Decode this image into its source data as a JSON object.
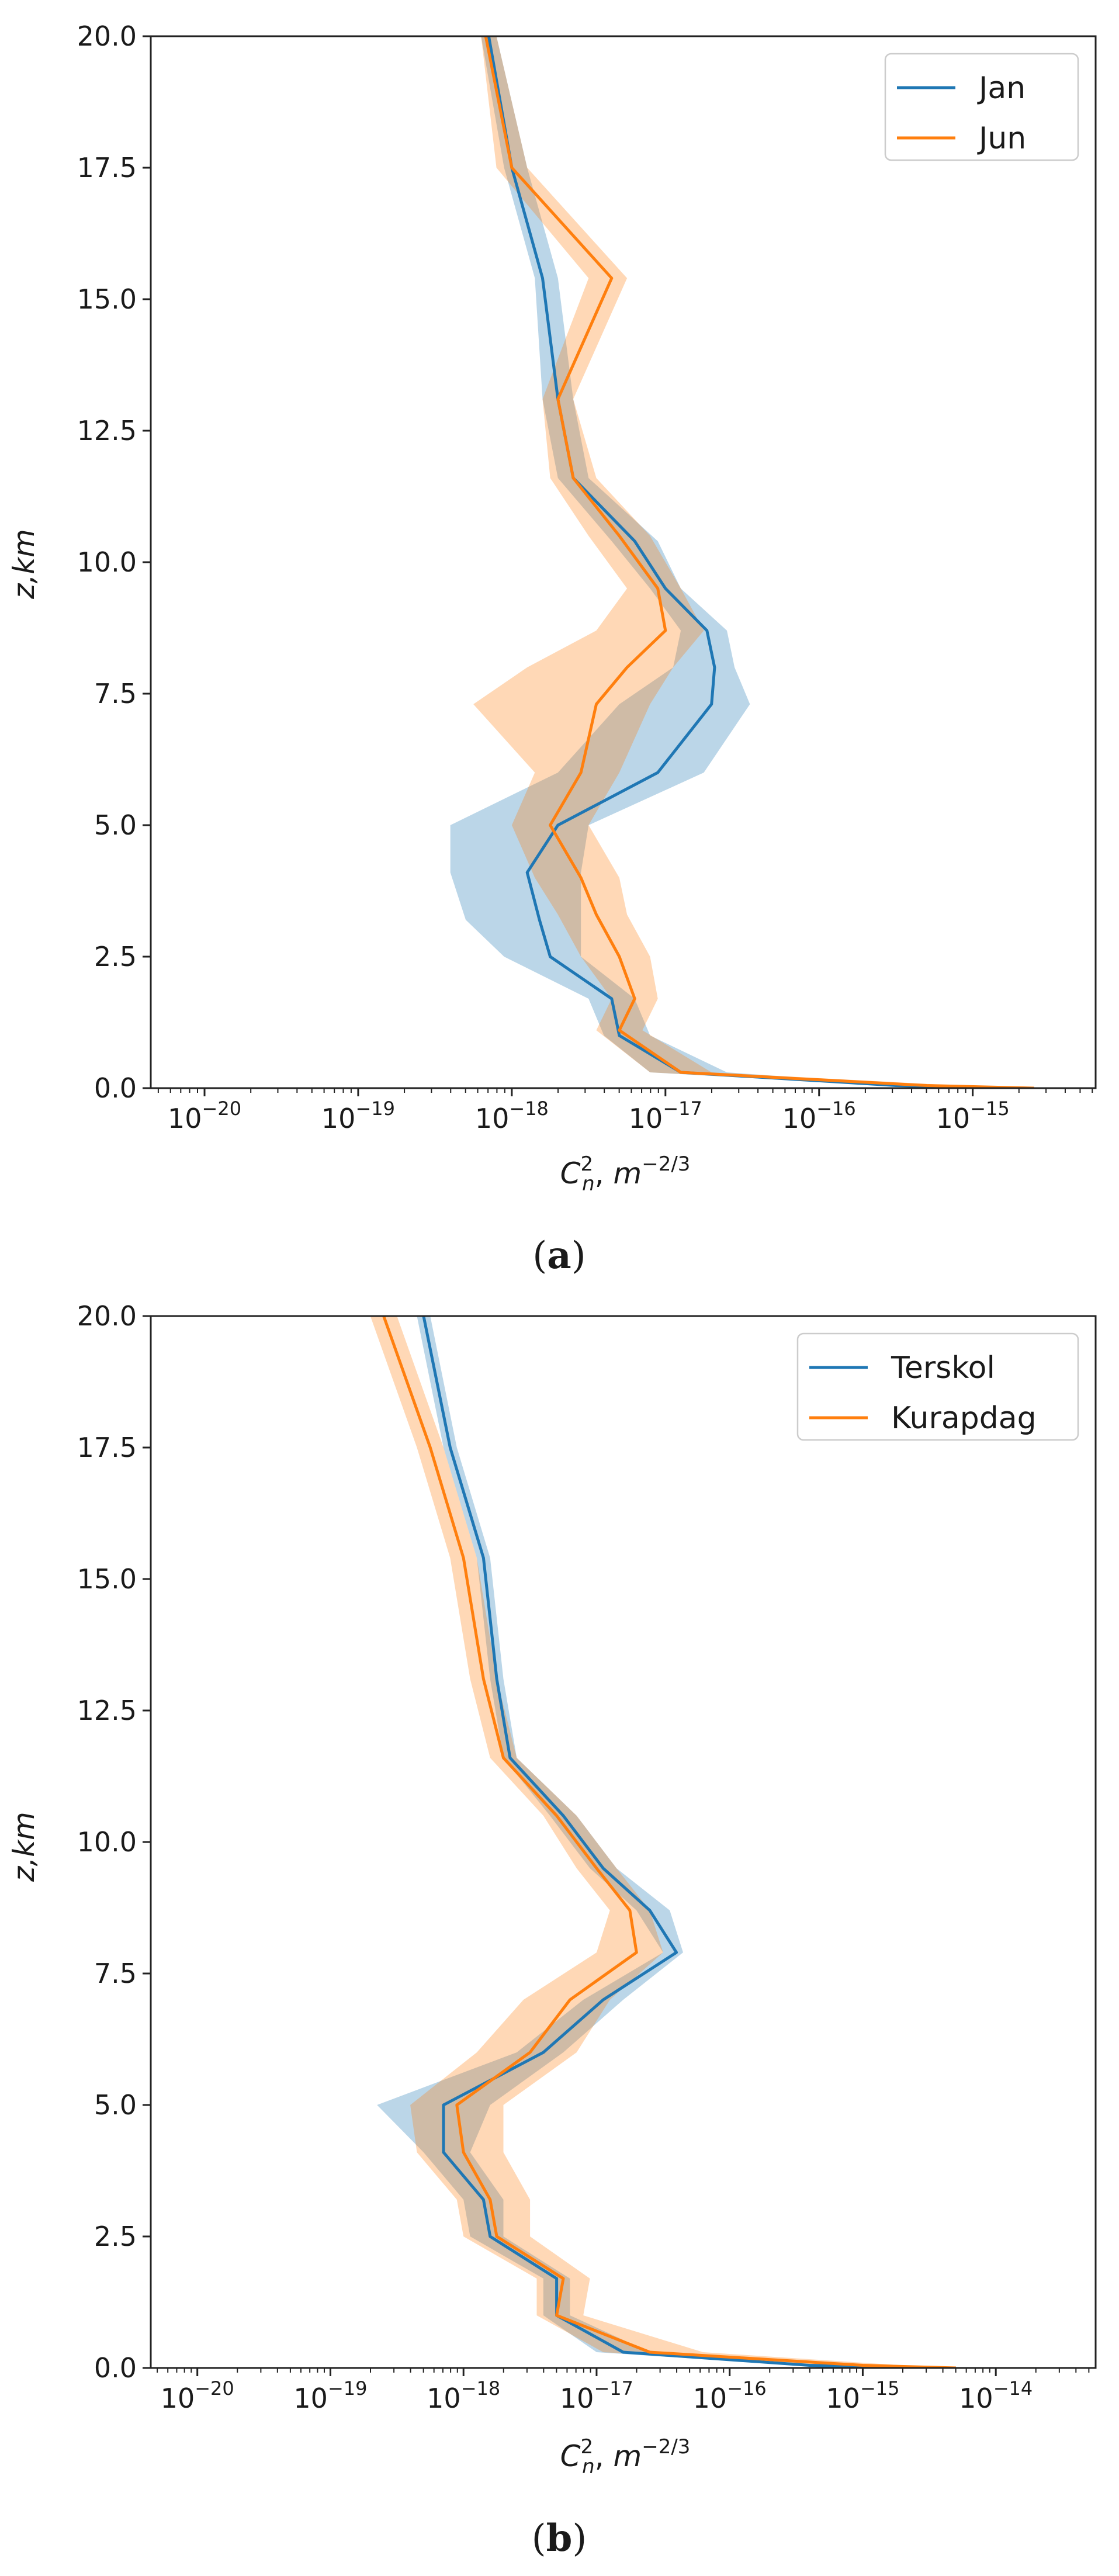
{
  "chart_data": [
    {
      "type": "line",
      "panel_label": "a",
      "xlabel": "C_n^2, m^-2/3",
      "ylabel": "z,km",
      "xscale": "log",
      "xlim_exp": [
        -20.35,
        -14.2
      ],
      "ylim": [
        0,
        20
      ],
      "y_ticks": [
        "0.0",
        "2.5",
        "5.0",
        "7.5",
        "10.0",
        "12.5",
        "15.0",
        "17.5",
        "20.0"
      ],
      "x_tick_exponents": [
        -20,
        -19,
        -18,
        -17,
        -16,
        -15
      ],
      "legend": {
        "position": "top-right",
        "entries": [
          "Jan",
          "Jun"
        ]
      },
      "series": [
        {
          "name": "Jan",
          "color": "#1f77b4",
          "z": [
            0.0,
            0.05,
            0.3,
            1.0,
            1.7,
            2.5,
            3.2,
            4.1,
            5.0,
            6.0,
            7.3,
            8.0,
            8.7,
            9.5,
            10.4,
            11.6,
            13.1,
            15.4,
            17.5,
            20.0
          ],
          "log_cn2": [
            -14.65,
            -15.5,
            -16.9,
            -17.3,
            -17.35,
            -17.75,
            -17.82,
            -17.9,
            -17.7,
            -17.05,
            -16.7,
            -16.68,
            -16.73,
            -17.0,
            -17.2,
            -17.6,
            -17.7,
            -17.8,
            -18.0,
            -18.15
          ],
          "band_lo": [
            -14.7,
            -15.6,
            -17.1,
            -17.4,
            -17.5,
            -18.05,
            -18.3,
            -18.4,
            -18.4,
            -17.7,
            -17.3,
            -16.95,
            -16.9,
            -17.1,
            -17.35,
            -17.7,
            -17.8,
            -17.85,
            -18.05,
            -18.2
          ],
          "band_hi": [
            -14.6,
            -15.4,
            -16.6,
            -17.1,
            -17.2,
            -17.55,
            -17.55,
            -17.55,
            -17.5,
            -16.75,
            -16.45,
            -16.55,
            -16.6,
            -16.9,
            -17.05,
            -17.5,
            -17.6,
            -17.7,
            -17.9,
            -18.1
          ]
        },
        {
          "name": "Jun",
          "color": "#ff7f0e",
          "z": [
            0.0,
            0.05,
            0.3,
            1.1,
            1.7,
            2.5,
            3.3,
            4.0,
            5.0,
            6.0,
            7.3,
            8.0,
            8.7,
            9.5,
            10.5,
            11.6,
            13.1,
            15.4,
            17.5,
            20.0
          ],
          "log_cn2": [
            -14.6,
            -15.3,
            -16.9,
            -17.3,
            -17.2,
            -17.3,
            -17.45,
            -17.55,
            -17.75,
            -17.55,
            -17.45,
            -17.25,
            -17.0,
            -17.05,
            -17.3,
            -17.6,
            -17.7,
            -17.35,
            -18.0,
            -18.17
          ],
          "band_lo": [
            -14.65,
            -15.5,
            -17.1,
            -17.45,
            -17.35,
            -17.55,
            -17.7,
            -17.85,
            -18.0,
            -17.85,
            -18.25,
            -17.9,
            -17.45,
            -17.25,
            -17.5,
            -17.75,
            -17.8,
            -17.5,
            -18.1,
            -18.2
          ],
          "band_hi": [
            -14.55,
            -15.1,
            -16.7,
            -17.15,
            -17.05,
            -17.1,
            -17.25,
            -17.3,
            -17.5,
            -17.3,
            -17.1,
            -16.95,
            -16.75,
            -16.9,
            -17.1,
            -17.45,
            -17.6,
            -17.25,
            -17.9,
            -18.1
          ]
        }
      ]
    },
    {
      "type": "line",
      "panel_label": "b",
      "xlabel": "C_n^2, m^-2/3",
      "ylabel": "z,km",
      "xscale": "log",
      "xlim_exp": [
        -20.35,
        -13.25
      ],
      "ylim": [
        0,
        20
      ],
      "y_ticks": [
        "0.0",
        "2.5",
        "5.0",
        "7.5",
        "10.0",
        "12.5",
        "15.0",
        "17.5",
        "20.0"
      ],
      "x_tick_exponents": [
        -20,
        -19,
        -18,
        -17,
        -16,
        -15,
        -14
      ],
      "legend": {
        "position": "top-right",
        "entries": [
          "Terskol",
          "Kurapdag"
        ]
      },
      "series": [
        {
          "name": "Terskol",
          "color": "#1f77b4",
          "z": [
            0.0,
            0.05,
            0.3,
            1.0,
            1.7,
            2.5,
            3.2,
            4.1,
            5.0,
            6.0,
            7.0,
            7.9,
            8.7,
            9.5,
            10.5,
            11.6,
            13.1,
            15.4,
            17.5,
            20.0
          ],
          "log_cn2": [
            -14.5,
            -15.4,
            -16.8,
            -17.3,
            -17.3,
            -17.8,
            -17.85,
            -18.15,
            -18.15,
            -17.4,
            -16.95,
            -16.4,
            -16.6,
            -16.95,
            -17.25,
            -17.65,
            -17.75,
            -17.85,
            -18.1,
            -18.3
          ],
          "band_lo": [
            -14.55,
            -15.5,
            -17.0,
            -17.4,
            -17.4,
            -17.95,
            -18.0,
            -18.3,
            -18.65,
            -17.6,
            -17.1,
            -16.5,
            -16.7,
            -17.05,
            -17.35,
            -17.7,
            -17.8,
            -17.9,
            -18.15,
            -18.35
          ],
          "band_hi": [
            -14.45,
            -15.3,
            -16.6,
            -17.2,
            -17.2,
            -17.7,
            -17.7,
            -17.95,
            -17.8,
            -17.25,
            -16.8,
            -16.35,
            -16.45,
            -16.85,
            -17.15,
            -17.6,
            -17.7,
            -17.8,
            -18.05,
            -18.25
          ]
        },
        {
          "name": "Kurapdag",
          "color": "#ff7f0e",
          "z": [
            0.0,
            0.05,
            0.3,
            1.0,
            1.7,
            2.5,
            3.2,
            4.1,
            5.0,
            6.0,
            7.0,
            7.9,
            8.7,
            9.5,
            10.5,
            11.6,
            13.1,
            15.4,
            17.5,
            20.0
          ],
          "log_cn2": [
            -14.3,
            -15.0,
            -16.6,
            -17.3,
            -17.25,
            -17.75,
            -17.8,
            -18.0,
            -18.05,
            -17.5,
            -17.2,
            -16.7,
            -16.75,
            -17.0,
            -17.3,
            -17.7,
            -17.85,
            -18.0,
            -18.25,
            -18.6
          ],
          "band_lo": [
            -14.35,
            -15.3,
            -16.95,
            -17.45,
            -17.45,
            -18.0,
            -18.05,
            -18.35,
            -18.4,
            -17.9,
            -17.55,
            -17.0,
            -16.9,
            -17.15,
            -17.4,
            -17.8,
            -17.95,
            -18.1,
            -18.35,
            -18.7
          ],
          "band_hi": [
            -14.25,
            -14.7,
            -16.2,
            -17.1,
            -17.05,
            -17.5,
            -17.5,
            -17.7,
            -17.7,
            -17.15,
            -16.9,
            -16.5,
            -16.6,
            -16.85,
            -17.15,
            -17.6,
            -17.75,
            -17.9,
            -18.15,
            -18.5
          ]
        }
      ]
    }
  ]
}
